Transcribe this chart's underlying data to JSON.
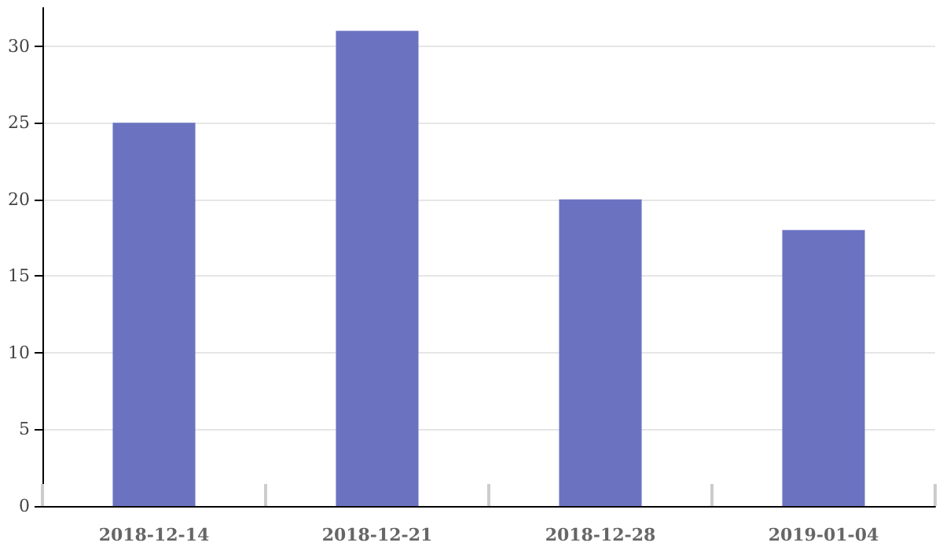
{
  "chart_data": {
    "type": "bar",
    "categories": [
      "2018-12-14",
      "2018-12-21",
      "2018-12-28",
      "2019-01-04"
    ],
    "values": [
      25,
      31,
      20,
      18
    ],
    "color": "#6b73c1",
    "ylim": [
      0,
      32.5
    ],
    "yticks": [
      0,
      5,
      10,
      15,
      20,
      25,
      30
    ],
    "grid": "y"
  }
}
